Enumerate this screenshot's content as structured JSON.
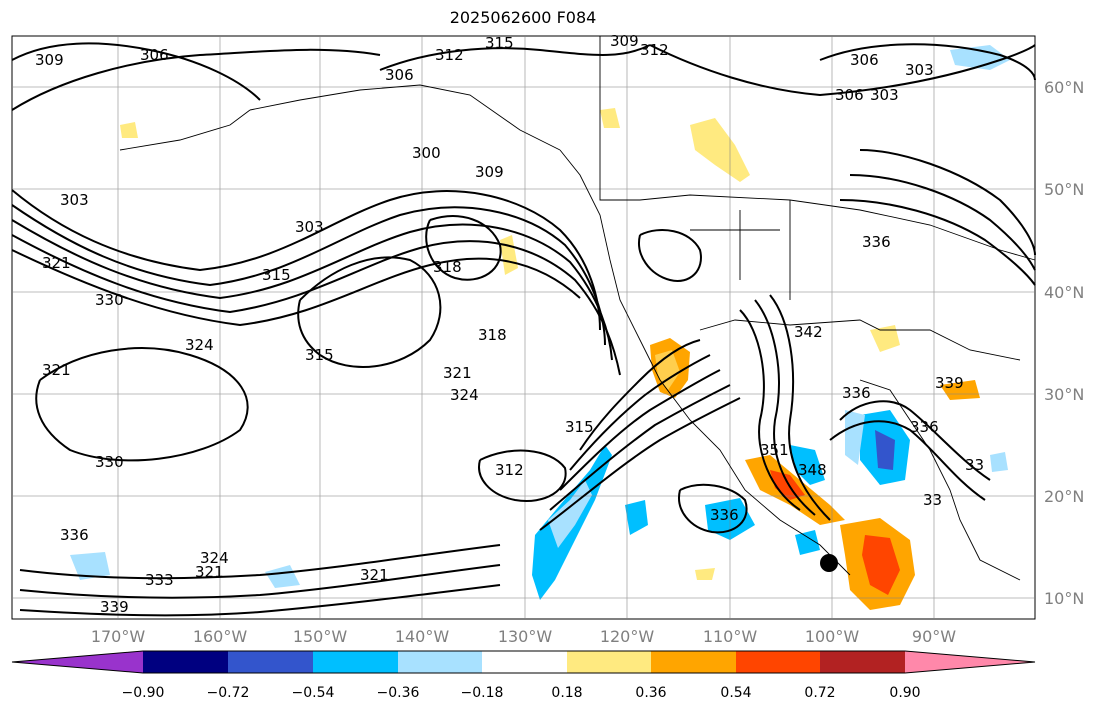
{
  "title": "2025062600 F084",
  "map": {
    "lon_ticks": [
      "170°W",
      "160°W",
      "150°W",
      "140°W",
      "130°W",
      "120°W",
      "110°W",
      "100°W",
      "90°W"
    ],
    "lat_ticks": [
      "60°N",
      "50°N",
      "40°N",
      "30°N",
      "20°N",
      "10°N"
    ],
    "contour_labels": [
      "309",
      "306",
      "312",
      "315",
      "309",
      "312",
      "306",
      "303",
      "306",
      "300",
      "309",
      "303",
      "303",
      "318",
      "315",
      "321",
      "330",
      "324",
      "315",
      "321",
      "318",
      "324",
      "321",
      "315",
      "312",
      "330",
      "336",
      "333",
      "321",
      "324",
      "321",
      "339",
      "336",
      "33",
      "336",
      "339",
      "342",
      "336",
      "351",
      "348",
      "336",
      "306",
      "303",
      "33"
    ]
  },
  "colorbar": {
    "colors": [
      "#9933cc",
      "#000080",
      "#3355cc",
      "#00bfff",
      "#a8e1ff",
      "#ffffff",
      "#ffea80",
      "#ffa500",
      "#ff4500",
      "#b22222",
      "#ff88aa"
    ],
    "tick_labels": [
      "−0.90",
      "−0.72",
      "−0.54",
      "−0.36",
      "−0.18",
      "0.18",
      "0.36",
      "0.54",
      "0.72",
      "0.90"
    ]
  }
}
